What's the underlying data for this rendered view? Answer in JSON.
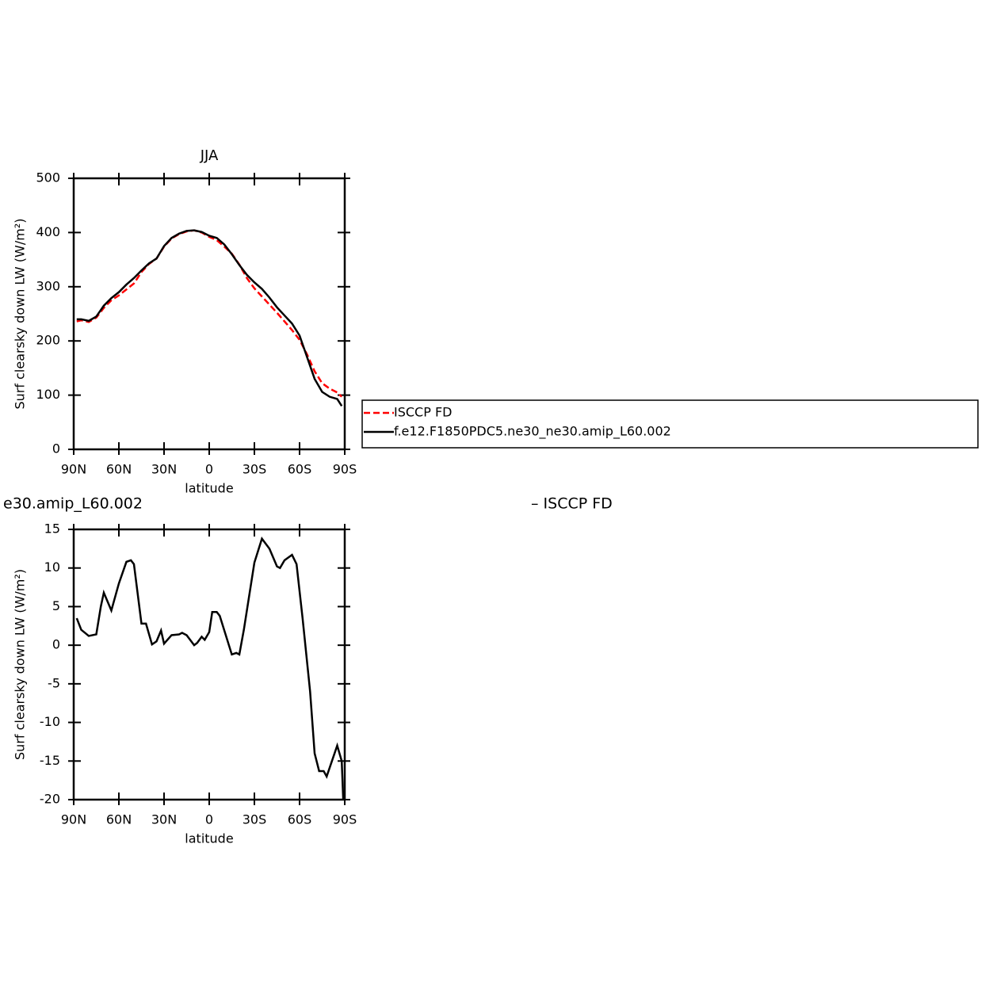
{
  "chart_data": [
    {
      "type": "line",
      "title": "JJA",
      "xlabel": "latitude",
      "ylabel": "Surf clearsky down LW (W/m²)",
      "x": [
        88,
        85,
        80,
        75,
        70,
        65,
        60,
        55,
        50,
        45,
        40,
        35,
        30,
        25,
        20,
        15,
        10,
        5,
        0,
        -5,
        -10,
        -15,
        -20,
        -25,
        -30,
        -35,
        -40,
        -45,
        -50,
        -55,
        -60,
        -65,
        -70,
        -75,
        -80,
        -85,
        -88
      ],
      "series": [
        {
          "name": "ISCCP FD",
          "color": "#ff0000",
          "style": "dashed",
          "values": [
            236,
            238,
            235,
            243,
            261,
            275,
            284,
            295,
            306,
            327,
            342,
            352,
            374,
            389,
            397,
            402,
            404,
            400,
            392,
            386,
            374,
            361,
            341,
            316,
            297,
            282,
            267,
            252,
            236,
            220,
            202,
            175,
            144,
            122,
            112,
            105,
            97
          ]
        },
        {
          "name": "f.e12.F1850PDC5.ne30_ne30.amip_L60.002",
          "color": "#000000",
          "style": "solid",
          "values": [
            240,
            240,
            237,
            245,
            265,
            279,
            290,
            304,
            316,
            330,
            343,
            352,
            375,
            390,
            398,
            403,
            404,
            401,
            394,
            390,
            378,
            360,
            340,
            322,
            308,
            296,
            280,
            262,
            247,
            232,
            210,
            170,
            130,
            106,
            97,
            93,
            80
          ]
        }
      ],
      "xlim": [
        90,
        -90
      ],
      "xticks": [
        {
          "value": 90,
          "label": "90N"
        },
        {
          "value": 60,
          "label": "60N"
        },
        {
          "value": 30,
          "label": "30N"
        },
        0,
        {
          "value": -30,
          "label": "30S"
        },
        {
          "value": -60,
          "label": "60S"
        },
        {
          "value": -90,
          "label": "90S"
        }
      ],
      "ylim": [
        0,
        500
      ],
      "yticks": [
        0,
        100,
        200,
        300,
        400,
        500
      ],
      "legend": "right"
    },
    {
      "type": "line",
      "title": "e30.amip_L60.002",
      "annotation": "– ISCCP FD",
      "xlabel": "latitude",
      "ylabel": "Surf clearsky down LW (W/m²)",
      "x": [
        88,
        85,
        80,
        75,
        72,
        70,
        65,
        60,
        55,
        52,
        50,
        45,
        42,
        38,
        35,
        32,
        30,
        25,
        20,
        18,
        15,
        10,
        8,
        5,
        3,
        0,
        -2,
        -5,
        -7,
        -15,
        -18,
        -20,
        -23,
        -30,
        -35,
        -40,
        -45,
        -47,
        -50,
        -55,
        -58,
        -62,
        -67,
        -70,
        -73,
        -76,
        -78,
        -85,
        -88,
        -89
      ],
      "values": [
        3.5,
        2,
        1.2,
        1.4,
        5,
        6.8,
        4.5,
        8,
        10.8,
        11,
        10.5,
        2.8,
        2.8,
        0.1,
        0.5,
        1.9,
        0.2,
        1.3,
        1.4,
        1.6,
        1.3,
        0,
        0.3,
        1.1,
        0.7,
        1.7,
        4.3,
        4.3,
        3.8,
        -1.2,
        -1,
        -1.2,
        2,
        10.7,
        13.8,
        12.5,
        10.2,
        10,
        11,
        11.7,
        10.5,
        3.5,
        -6,
        -14,
        -16.3,
        -16.3,
        -17,
        -13,
        -15,
        -20
      ],
      "color": "#000000",
      "xlim": [
        90,
        -90
      ],
      "xticks": [
        {
          "value": 90,
          "label": "90N"
        },
        {
          "value": 60,
          "label": "60N"
        },
        {
          "value": 30,
          "label": "30N"
        },
        0,
        {
          "value": -30,
          "label": "30S"
        },
        {
          "value": -60,
          "label": "60S"
        },
        {
          "value": -90,
          "label": "90S"
        }
      ],
      "ylim": [
        -20,
        15
      ],
      "yticks": [
        -20,
        -15,
        -10,
        -5,
        0,
        5,
        10,
        15
      ]
    }
  ]
}
